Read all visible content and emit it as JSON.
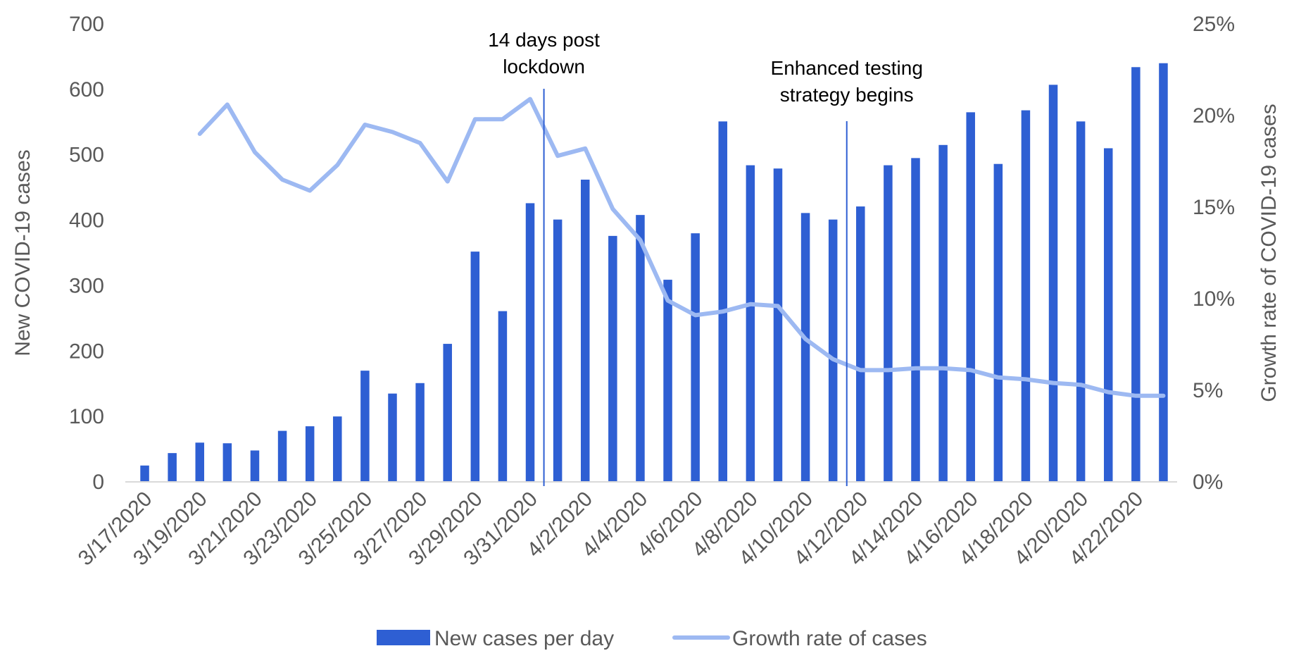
{
  "chart_data": {
    "type": "bar",
    "categories": [
      "3/17/2020",
      "3/18/2020",
      "3/19/2020",
      "3/20/2020",
      "3/21/2020",
      "3/22/2020",
      "3/23/2020",
      "3/24/2020",
      "3/25/2020",
      "3/26/2020",
      "3/27/2020",
      "3/28/2020",
      "3/29/2020",
      "3/30/2020",
      "3/31/2020",
      "4/1/2020",
      "4/2/2020",
      "4/3/2020",
      "4/4/2020",
      "4/5/2020",
      "4/6/2020",
      "4/7/2020",
      "4/8/2020",
      "4/9/2020",
      "4/10/2020",
      "4/11/2020",
      "4/12/2020",
      "4/13/2020",
      "4/14/2020",
      "4/15/2020",
      "4/16/2020",
      "4/17/2020",
      "4/18/2020",
      "4/19/2020",
      "4/20/2020",
      "4/21/2020",
      "4/22/2020",
      "4/23/2020"
    ],
    "tick_labels": [
      "3/17/2020",
      "3/19/2020",
      "3/21/2020",
      "3/23/2020",
      "3/25/2020",
      "3/27/2020",
      "3/29/2020",
      "3/31/2020",
      "4/2/2020",
      "4/4/2020",
      "4/6/2020",
      "4/8/2020",
      "4/10/2020",
      "4/12/2020",
      "4/14/2020",
      "4/16/2020",
      "4/18/2020",
      "4/20/2020",
      "4/22/2020"
    ],
    "series": [
      {
        "name": "New cases per day",
        "type": "bar",
        "axis": "left",
        "color": "#2E5FD3",
        "values": [
          25,
          44,
          60,
          59,
          48,
          78,
          85,
          100,
          170,
          135,
          151,
          211,
          352,
          261,
          426,
          401,
          462,
          376,
          408,
          309,
          380,
          551,
          484,
          479,
          411,
          401,
          421,
          484,
          495,
          515,
          565,
          486,
          568,
          607,
          551,
          510,
          634,
          640
        ]
      },
      {
        "name": "Growth rate of cases",
        "type": "line",
        "axis": "right",
        "color": "#9DB9F2",
        "values": [
          null,
          null,
          0.19,
          0.206,
          0.18,
          0.165,
          0.159,
          0.173,
          0.195,
          0.191,
          0.185,
          0.164,
          0.198,
          0.198,
          0.209,
          0.178,
          0.182,
          0.149,
          0.132,
          0.099,
          0.091,
          0.093,
          0.097,
          0.096,
          0.078,
          0.067,
          0.061,
          0.061,
          0.062,
          0.062,
          0.061,
          0.057,
          0.056,
          0.054,
          0.053,
          0.049,
          0.047,
          0.047
        ]
      }
    ],
    "ylabel": "New COVID-19 cases",
    "ylim": [
      0,
      700
    ],
    "yticks": [
      "0",
      "100",
      "200",
      "300",
      "400",
      "500",
      "600",
      "700"
    ],
    "y2label": "Growth rate of COVID-19 cases",
    "y2lim": [
      0,
      0.25
    ],
    "y2ticks": [
      "0%",
      "5%",
      "10%",
      "15%",
      "20%",
      "25%"
    ],
    "annotations": [
      {
        "lines": [
          "14 days post",
          "lockdown"
        ],
        "x_between": [
          "3/31/2020",
          "4/1/2020"
        ]
      },
      {
        "lines": [
          "Enhanced testing",
          "strategy begins"
        ],
        "x_between": [
          "4/11/2020",
          "4/12/2020"
        ]
      }
    ],
    "grid": false,
    "legend": "bottom"
  }
}
